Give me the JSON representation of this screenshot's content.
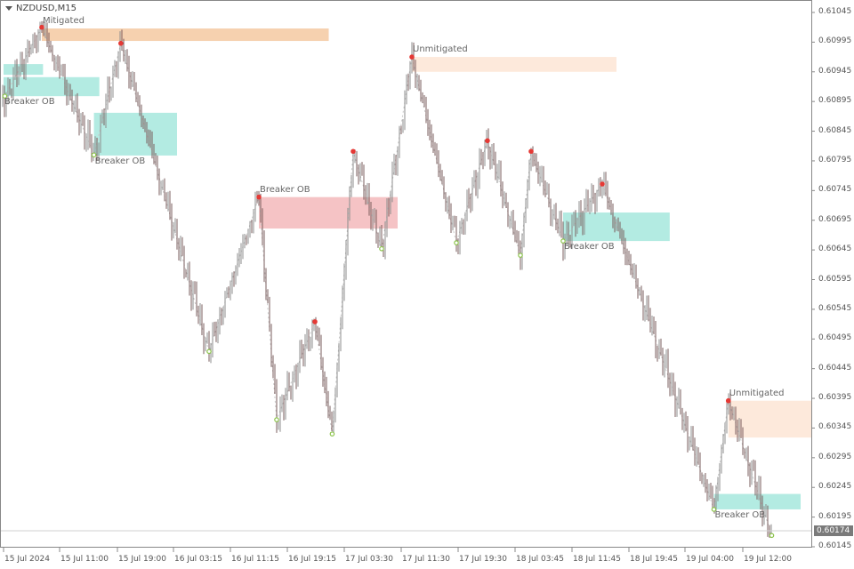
{
  "window": {
    "symbol_title": "NZDUSD,M15",
    "current_price": "0.60174"
  },
  "chart_data": {
    "type": "candlestick",
    "symbol": "NZDUSD",
    "timeframe": "M15",
    "y_ticks": [
      "0.61045",
      "0.60995",
      "0.60945",
      "0.60895",
      "0.60845",
      "0.60795",
      "0.60745",
      "0.60695",
      "0.60645",
      "0.60595",
      "0.60545",
      "0.60495",
      "0.60445",
      "0.60395",
      "0.60345",
      "0.60295",
      "0.60245",
      "0.60195",
      "0.60145"
    ],
    "ylim": [
      0.60125,
      0.61065
    ],
    "x_ticks": [
      "15 Jul 2024",
      "15 Jul 11:00",
      "15 Jul 19:00",
      "16 Jul 03:15",
      "16 Jul 11:15",
      "16 Jul 19:15",
      "17 Jul 03:30",
      "17 Jul 11:30",
      "17 Jul 19:30",
      "18 Jul 03:45",
      "18 Jul 11:45",
      "18 Jul 19:45",
      "19 Jul 04:00",
      "19 Jul 12:00"
    ],
    "last_price": 0.60174,
    "swings": [
      {
        "t": "15 00:15",
        "p": 0.60904,
        "type": "low"
      },
      {
        "t": "15 07:30",
        "p": 0.6102,
        "type": "high"
      },
      {
        "t": "15 15:45",
        "p": 0.60805,
        "type": "low"
      },
      {
        "t": "15 19:30",
        "p": 0.60993,
        "type": "high"
      },
      {
        "t": "16 08:15",
        "p": 0.60474,
        "type": "low"
      },
      {
        "t": "16 15:15",
        "p": 0.60734,
        "type": "high"
      },
      {
        "t": "16 17:45",
        "p": 0.60359,
        "type": "low"
      },
      {
        "t": "16 23:15",
        "p": 0.60524,
        "type": "high"
      },
      {
        "t": "17 01:45",
        "p": 0.60335,
        "type": "low"
      },
      {
        "t": "17 04:45",
        "p": 0.60811,
        "type": "high"
      },
      {
        "t": "17 08:45",
        "p": 0.60647,
        "type": "low"
      },
      {
        "t": "17 13:00",
        "p": 0.6097,
        "type": "high"
      },
      {
        "t": "17 19:15",
        "p": 0.60657,
        "type": "low"
      },
      {
        "t": "17 23:45",
        "p": 0.60829,
        "type": "high"
      },
      {
        "t": "18 04:30",
        "p": 0.60636,
        "type": "low"
      },
      {
        "t": "18 06:00",
        "p": 0.60811,
        "type": "high"
      },
      {
        "t": "18 10:30",
        "p": 0.6066,
        "type": "low"
      },
      {
        "t": "18 16:00",
        "p": 0.60756,
        "type": "high"
      },
      {
        "t": "19 08:00",
        "p": 0.60208,
        "type": "low"
      },
      {
        "t": "19 10:00",
        "p": 0.60391,
        "type": "high"
      },
      {
        "t": "19 16:00",
        "p": 0.60164,
        "type": "low"
      }
    ],
    "zones": [
      {
        "label": "Mitigated",
        "from": "15 07:30",
        "to": "17 01:15",
        "top": 0.61018,
        "bottom": 0.60997,
        "color": "#f6d1af",
        "label_pos": "above"
      },
      {
        "label": "Unmitigated",
        "from": "17 13:00",
        "to": "18 18:00",
        "top": 0.6097,
        "bottom": 0.60945,
        "color": "#fde9db",
        "label_pos": "above"
      },
      {
        "label": "",
        "from": "15 00:00",
        "to": "15 07:45",
        "top": 0.60958,
        "bottom": 0.6094,
        "color": "#b3ebe2",
        "label_pos": "none"
      },
      {
        "label": "Breaker OB",
        "from": "15 00:00",
        "to": "15 16:30",
        "top": 0.60936,
        "bottom": 0.60904,
        "color": "#b3ebe2",
        "label_pos": "below"
      },
      {
        "label": "Breaker OB",
        "from": "15 15:45",
        "to": "16 03:45",
        "top": 0.60876,
        "bottom": 0.60804,
        "color": "#b3ebe2",
        "label_pos": "below"
      },
      {
        "label": "Breaker OB",
        "from": "16 15:15",
        "to": "17 11:00",
        "top": 0.60734,
        "bottom": 0.60681,
        "color": "#f5c3c5",
        "label_pos": "above"
      },
      {
        "label": "Breaker OB",
        "from": "18 10:30",
        "to": "19 01:45",
        "top": 0.60708,
        "bottom": 0.6066,
        "color": "#b3ebe2",
        "label_pos": "below"
      },
      {
        "label": "Unmitigated",
        "from": "19 10:00",
        "to": "19 21:30",
        "top": 0.60391,
        "bottom": 0.60329,
        "color": "#fde9db",
        "label_pos": "above"
      },
      {
        "label": "Breaker OB",
        "from": "19 08:00",
        "to": "19 20:00",
        "top": 0.60234,
        "bottom": 0.60208,
        "color": "#b3ebe2",
        "label_pos": "below"
      }
    ],
    "colors": {
      "high_marker": "#e53935",
      "low_marker": "#8bc34a",
      "candle": "#8c8c8c",
      "candle_dark": "#7a5c5c",
      "zigzag": "#c8c8c8"
    }
  }
}
